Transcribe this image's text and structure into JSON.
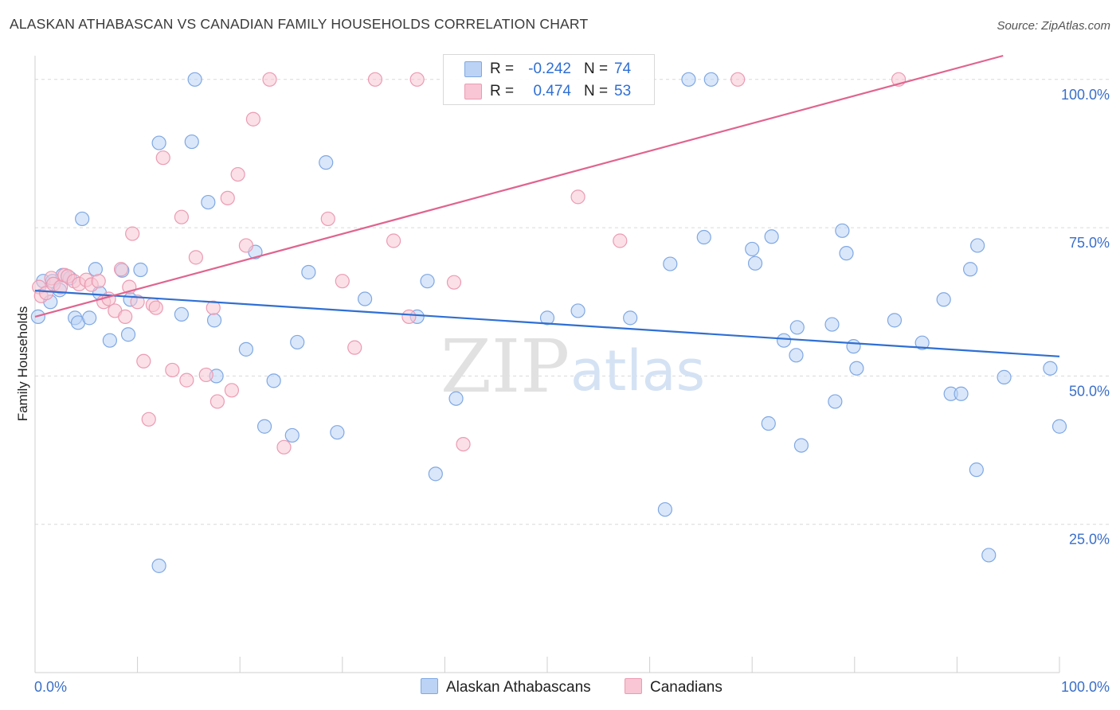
{
  "title": "ALASKAN ATHABASCAN VS CANADIAN FAMILY HOUSEHOLDS CORRELATION CHART",
  "source": "Source: ZipAtlas.com",
  "watermark": {
    "zip": "ZIP",
    "atlas": "atlas"
  },
  "stats": [
    {
      "r_label": "R =",
      "r_value": "-0.242",
      "n_label": "N =",
      "n_value": "74"
    },
    {
      "r_label": "R =",
      "r_value": "0.474",
      "n_label": "N =",
      "n_value": "53"
    }
  ],
  "legend": {
    "series1": "Alaskan Athabascans",
    "series2": "Canadians"
  },
  "colors": {
    "blue_fill": "#bcd3f5",
    "blue_stroke": "#7fa8e3",
    "blue_line": "#2f6fd3",
    "pink_fill": "#f8c6d4",
    "pink_stroke": "#eb9bb3",
    "pink_line": "#e0648f",
    "grid": "#d9d9d9",
    "axis_label": "#3a6fc9"
  },
  "chart_data": {
    "type": "scatter",
    "title": "ALASKAN ATHABASCAN VS CANADIAN FAMILY HOUSEHOLDS CORRELATION CHART",
    "xlabel": "",
    "ylabel": "Family Households",
    "xlim": [
      0,
      100
    ],
    "ylim": [
      0,
      104
    ],
    "x_tick_labels": {
      "left": "0.0%",
      "right": "100.0%"
    },
    "y_ticks": [
      {
        "value": 25,
        "label": "25.0%"
      },
      {
        "value": 50,
        "label": "50.0%"
      },
      {
        "value": 75,
        "label": "75.0%"
      },
      {
        "value": 100,
        "label": "100.0%"
      }
    ],
    "grid": true,
    "legend_position": "bottom-center",
    "series": [
      {
        "name": "Alaskan Athabascans",
        "color": "blue",
        "trend": {
          "x0": 0,
          "y0": 64.4,
          "x1": 100,
          "y1": 53.3
        },
        "points": [
          [
            0.3,
            60.0
          ],
          [
            0.8,
            66.0
          ],
          [
            1.5,
            62.5
          ],
          [
            1.7,
            66.0
          ],
          [
            2.4,
            64.5
          ],
          [
            2.7,
            67.0
          ],
          [
            3.4,
            66.5
          ],
          [
            3.9,
            59.8
          ],
          [
            4.2,
            59.0
          ],
          [
            4.6,
            76.5
          ],
          [
            5.3,
            59.8
          ],
          [
            5.9,
            68.0
          ],
          [
            6.3,
            64.0
          ],
          [
            7.3,
            56.0
          ],
          [
            8.5,
            67.8
          ],
          [
            9.1,
            57.0
          ],
          [
            9.3,
            62.9
          ],
          [
            10.3,
            67.9
          ],
          [
            12.1,
            18.0
          ],
          [
            12.1,
            89.3
          ],
          [
            14.3,
            60.4
          ],
          [
            15.3,
            89.5
          ],
          [
            15.6,
            100.0
          ],
          [
            16.9,
            79.3
          ],
          [
            17.5,
            59.4
          ],
          [
            17.7,
            50.0
          ],
          [
            20.6,
            54.5
          ],
          [
            21.5,
            70.9
          ],
          [
            22.4,
            41.5
          ],
          [
            23.3,
            49.2
          ],
          [
            25.1,
            40.0
          ],
          [
            25.6,
            55.7
          ],
          [
            26.7,
            67.5
          ],
          [
            28.4,
            86.0
          ],
          [
            29.5,
            40.5
          ],
          [
            32.2,
            63.0
          ],
          [
            38.3,
            66.0
          ],
          [
            37.3,
            60.0
          ],
          [
            39.1,
            33.5
          ],
          [
            41.1,
            46.2
          ],
          [
            50.0,
            59.8
          ],
          [
            53.0,
            61.0
          ],
          [
            58.1,
            59.8
          ],
          [
            61.5,
            27.5
          ],
          [
            62.0,
            68.9
          ],
          [
            65.3,
            73.4
          ],
          [
            66.0,
            100.0
          ],
          [
            70.0,
            71.4
          ],
          [
            70.3,
            69.0
          ],
          [
            71.6,
            42.0
          ],
          [
            71.9,
            73.5
          ],
          [
            73.1,
            56.0
          ],
          [
            74.3,
            53.5
          ],
          [
            74.4,
            58.2
          ],
          [
            74.8,
            38.3
          ],
          [
            77.8,
            58.7
          ],
          [
            78.1,
            45.7
          ],
          [
            78.8,
            74.5
          ],
          [
            79.2,
            70.7
          ],
          [
            79.9,
            55.0
          ],
          [
            80.2,
            51.3
          ],
          [
            83.9,
            59.4
          ],
          [
            86.6,
            55.6
          ],
          [
            88.7,
            62.9
          ],
          [
            89.4,
            47.0
          ],
          [
            90.4,
            47.0
          ],
          [
            91.3,
            68.0
          ],
          [
            91.9,
            34.2
          ],
          [
            92.0,
            72.0
          ],
          [
            93.1,
            19.8
          ],
          [
            94.6,
            49.8
          ],
          [
            99.1,
            51.3
          ],
          [
            100.0,
            41.5
          ],
          [
            63.8,
            100.0
          ]
        ]
      },
      {
        "name": "Canadians",
        "color": "pink",
        "trend": {
          "x0": 0,
          "y0": 60.0,
          "x1": 94.5,
          "y1": 104.0
        },
        "points": [
          [
            0.4,
            65.0
          ],
          [
            0.6,
            63.5
          ],
          [
            1.1,
            64.0
          ],
          [
            1.6,
            66.5
          ],
          [
            1.8,
            65.5
          ],
          [
            2.5,
            65.0
          ],
          [
            2.9,
            67.0
          ],
          [
            3.2,
            66.8
          ],
          [
            3.8,
            66.0
          ],
          [
            4.3,
            65.5
          ],
          [
            5.0,
            66.2
          ],
          [
            5.5,
            65.4
          ],
          [
            6.2,
            66.0
          ],
          [
            6.7,
            62.5
          ],
          [
            7.2,
            63.0
          ],
          [
            7.8,
            61.0
          ],
          [
            8.4,
            68.0
          ],
          [
            8.8,
            60.0
          ],
          [
            9.2,
            65.0
          ],
          [
            9.5,
            74.0
          ],
          [
            10.0,
            62.5
          ],
          [
            10.6,
            52.5
          ],
          [
            11.1,
            42.7
          ],
          [
            11.5,
            62.0
          ],
          [
            11.8,
            61.5
          ],
          [
            12.5,
            86.8
          ],
          [
            13.4,
            51.0
          ],
          [
            14.3,
            76.8
          ],
          [
            14.8,
            49.3
          ],
          [
            15.7,
            70.0
          ],
          [
            16.7,
            50.2
          ],
          [
            17.4,
            61.5
          ],
          [
            17.8,
            45.7
          ],
          [
            18.8,
            80.0
          ],
          [
            19.2,
            47.6
          ],
          [
            19.8,
            84.0
          ],
          [
            20.6,
            72.0
          ],
          [
            21.3,
            93.3
          ],
          [
            22.9,
            100.0
          ],
          [
            24.3,
            38.0
          ],
          [
            28.6,
            76.5
          ],
          [
            30.0,
            66.0
          ],
          [
            31.2,
            54.8
          ],
          [
            33.2,
            100.0
          ],
          [
            35.0,
            72.8
          ],
          [
            36.5,
            60.0
          ],
          [
            37.3,
            100.0
          ],
          [
            40.9,
            65.8
          ],
          [
            41.8,
            38.5
          ],
          [
            53.0,
            80.2
          ],
          [
            57.1,
            72.8
          ],
          [
            68.6,
            100.0
          ],
          [
            84.3,
            100.0
          ]
        ]
      }
    ]
  }
}
